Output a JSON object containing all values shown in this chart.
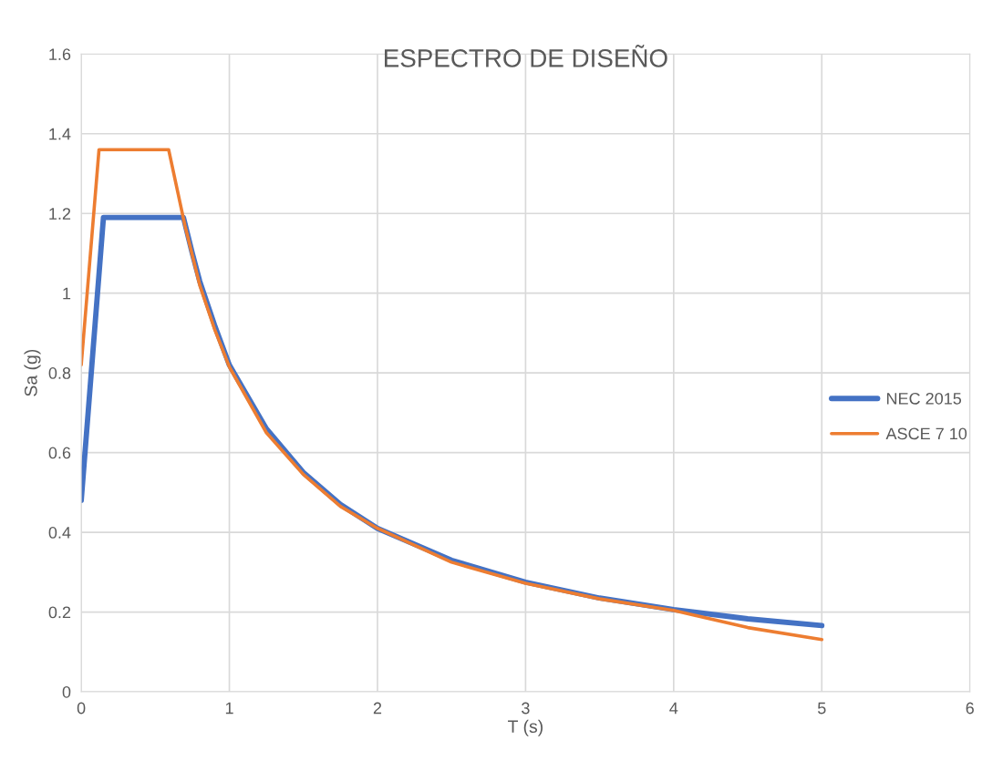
{
  "chart_data": {
    "type": "line",
    "title": "ESPECTRO DE DISEÑO",
    "xlabel": "T (s)",
    "ylabel": "Sa (g)",
    "series": [
      {
        "name": "NEC 2015",
        "color": "#4472c4",
        "x": [
          0,
          0.15,
          0.2,
          0.69,
          0.75,
          0.8,
          0.9,
          1,
          1.25,
          1.5,
          1.75,
          2,
          2.5,
          3,
          3.5,
          4,
          4.5,
          5
        ],
        "values": [
          0.48,
          1.19,
          1.19,
          1.19,
          1.1,
          1.03,
          0.92,
          0.82,
          0.66,
          0.55,
          0.47,
          0.41,
          0.33,
          0.275,
          0.235,
          0.206,
          0.183,
          0.166
        ]
      },
      {
        "name": "ASCE 7 10",
        "color": "#ed7d31",
        "x": [
          0,
          0.12,
          0.2,
          0.59,
          0.7,
          0.8,
          0.9,
          1,
          1.25,
          1.5,
          1.75,
          2,
          2.5,
          3,
          3.5,
          4,
          4.5,
          5
        ],
        "values": [
          0.82,
          1.36,
          1.36,
          1.36,
          1.17,
          1.02,
          0.91,
          0.815,
          0.65,
          0.545,
          0.465,
          0.41,
          0.325,
          0.272,
          0.233,
          0.204,
          0.161,
          0.131
        ]
      }
    ],
    "xlim": [
      0,
      6
    ],
    "xticks": [
      0,
      1,
      2,
      3,
      4,
      5,
      6
    ],
    "ylim": [
      0,
      1.6
    ],
    "yticks": [
      0,
      0.2,
      0.4,
      0.6,
      0.8,
      1,
      1.2,
      1.4,
      1.6
    ],
    "grid": true,
    "legend": "right",
    "marker": "none",
    "line_style": "solid"
  }
}
